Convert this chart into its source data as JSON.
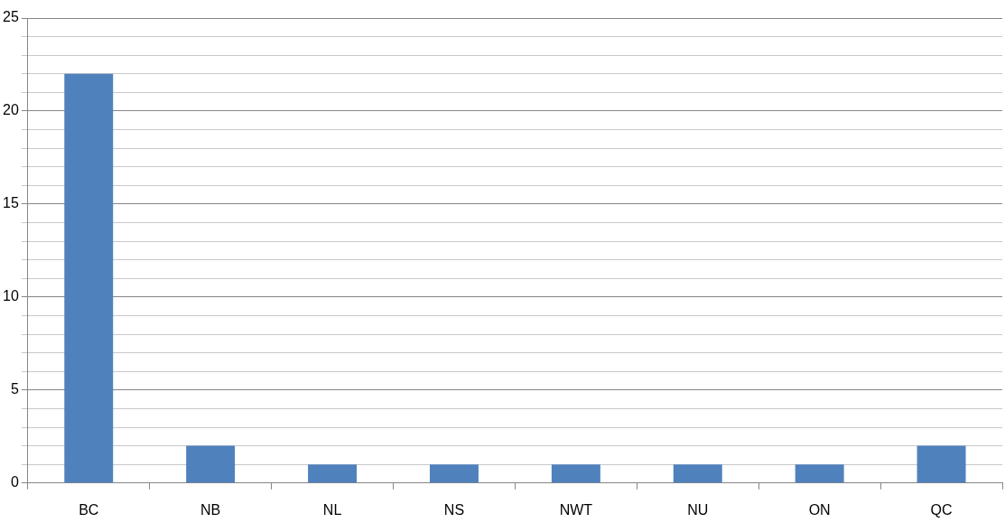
{
  "chart_data": {
    "type": "bar",
    "categories": [
      "BC",
      "NB",
      "NL",
      "NS",
      "NWT",
      "NU",
      "ON",
      "QC"
    ],
    "values": [
      22,
      2,
      1,
      1,
      1,
      1,
      1,
      2
    ],
    "color": "#4f81bd",
    "ylim": [
      0,
      25
    ],
    "yticks": [
      0,
      {
        "value": 1,
        "label": null
      },
      {
        "value": 2,
        "label": null
      },
      {
        "value": 3,
        "label": null
      },
      {
        "value": 4,
        "label": null
      },
      5,
      {
        "value": 6,
        "label": null
      },
      {
        "value": 7,
        "label": null
      },
      {
        "value": 8,
        "label": null
      },
      {
        "value": 9,
        "label": null
      },
      10,
      {
        "value": 11,
        "label": null
      },
      {
        "value": 12,
        "label": null
      },
      {
        "value": 13,
        "label": null
      },
      {
        "value": 14,
        "label": null
      },
      15,
      {
        "value": 16,
        "label": null
      },
      {
        "value": 17,
        "label": null
      },
      {
        "value": 18,
        "label": null
      },
      {
        "value": 19,
        "label": null
      },
      20,
      {
        "value": 21,
        "label": null
      },
      {
        "value": 22,
        "label": null
      },
      {
        "value": 23,
        "label": null
      },
      {
        "value": 24,
        "label": null
      },
      25
    ],
    "grid": true,
    "legend": false
  }
}
